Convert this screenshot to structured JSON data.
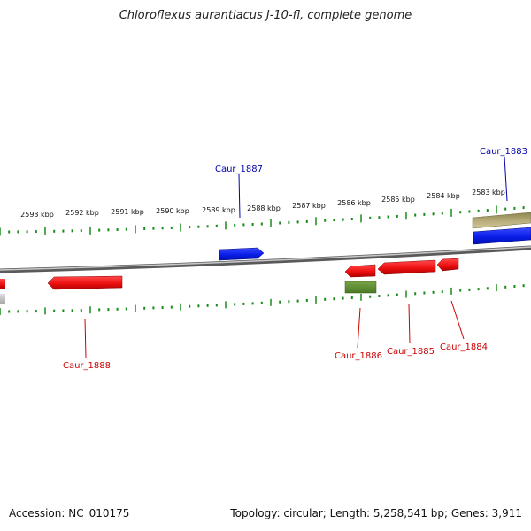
{
  "title": "Chloroflexus aurantiacus J-10-fl, complete genome",
  "footer": {
    "accession": "Accession: NC_010175",
    "summary": "Topology: circular; Length: 5,258,541 bp; Genes: 3,911"
  },
  "colors": {
    "backbone": "#8a8a8a",
    "ticks": "#1a8a1a",
    "forward_gene": "#0a1ee8",
    "reverse_gene": "#ee1111",
    "rna_gene": "#5a8a2a",
    "other_feature": "#b5aa77",
    "label_forward": "#0000aa",
    "label_reverse": "#cc0000"
  },
  "ruler_labels": [
    "2593 kbp",
    "2592 kbp",
    "2591 kbp",
    "2590 kbp",
    "2589 kbp",
    "2588 kbp",
    "2587 kbp",
    "2586 kbp",
    "2585 kbp",
    "2584 kbp",
    "2583 kbp"
  ],
  "gene_labels": {
    "caur_1887": "Caur_1887",
    "caur_1883": "Caur_1883",
    "caur_1888": "Caur_1888",
    "caur_1886": "Caur_1886",
    "caur_1885": "Caur_1885",
    "caur_1884": "Caur_1884"
  }
}
